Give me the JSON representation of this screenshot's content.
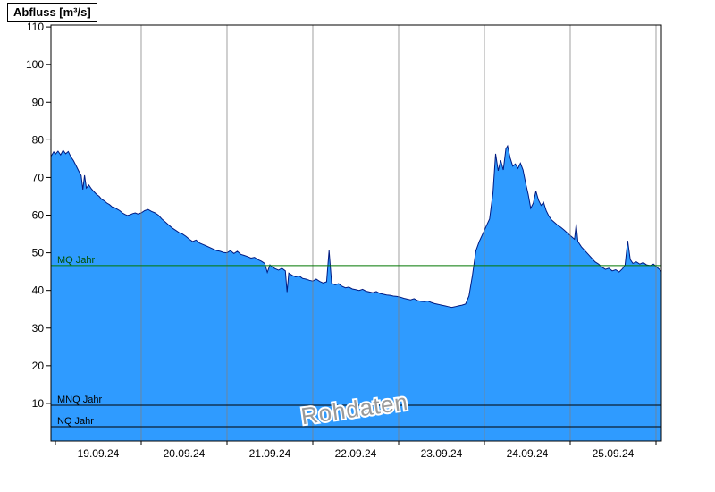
{
  "chart_data": {
    "type": "area",
    "title": "Abfluss [m³/s]",
    "watermark": "Rohdaten",
    "x_tick_labels": [
      "19.09.24",
      "20.09.24",
      "21.09.24",
      "22.09.24",
      "23.09.24",
      "24.09.24",
      "25.09.24"
    ],
    "x_label_positions_days": [
      0.5,
      1.5,
      2.5,
      3.5,
      4.5,
      5.5,
      6.5
    ],
    "x_ticks_days": [
      0,
      1,
      2,
      3,
      4,
      5,
      6,
      7
    ],
    "x_gridlines_days": [
      1,
      2,
      3,
      4,
      5,
      6,
      7
    ],
    "x_domain_days": [
      -0.052,
      7.0625
    ],
    "ylim": [
      0,
      110.5
    ],
    "y_ticks": [
      10,
      20,
      30,
      40,
      50,
      60,
      70,
      80,
      90,
      100,
      110
    ],
    "ylabel": "Abfluss [m³/s]",
    "reference_lines": [
      {
        "label": "MQ Jahr",
        "value": 46.6,
        "color": "#007800",
        "label_color": "#005000"
      },
      {
        "label": "MNQ Jahr",
        "value": 9.5,
        "color": "#000000",
        "label_color": "#000000"
      },
      {
        "label": "NQ Jahr",
        "value": 3.8,
        "color": "#000000",
        "label_color": "#000000"
      }
    ],
    "series": [
      {
        "name": "Abfluss Rohdaten",
        "unit": "m³/s",
        "points": [
          [
            -0.052,
            75.6
          ],
          [
            -0.02,
            76.8
          ],
          [
            0.0,
            76.2
          ],
          [
            0.03,
            77.0
          ],
          [
            0.06,
            76.0
          ],
          [
            0.09,
            77.2
          ],
          [
            0.12,
            76.3
          ],
          [
            0.15,
            76.9
          ],
          [
            0.18,
            75.5
          ],
          [
            0.21,
            74.5
          ],
          [
            0.24,
            73.2
          ],
          [
            0.27,
            71.8
          ],
          [
            0.3,
            70.5
          ],
          [
            0.32,
            66.8
          ],
          [
            0.34,
            70.6
          ],
          [
            0.36,
            67.2
          ],
          [
            0.39,
            68.0
          ],
          [
            0.42,
            67.0
          ],
          [
            0.45,
            66.2
          ],
          [
            0.48,
            65.5
          ],
          [
            0.51,
            65.0
          ],
          [
            0.54,
            64.2
          ],
          [
            0.57,
            63.8
          ],
          [
            0.6,
            63.2
          ],
          [
            0.63,
            62.8
          ],
          [
            0.66,
            62.2
          ],
          [
            0.69,
            62.0
          ],
          [
            0.72,
            61.6
          ],
          [
            0.75,
            61.2
          ],
          [
            0.78,
            60.6
          ],
          [
            0.81,
            60.2
          ],
          [
            0.84,
            59.9
          ],
          [
            0.87,
            60.1
          ],
          [
            0.9,
            60.4
          ],
          [
            0.93,
            60.6
          ],
          [
            0.96,
            60.3
          ],
          [
            1.0,
            60.6
          ],
          [
            1.04,
            61.2
          ],
          [
            1.08,
            61.5
          ],
          [
            1.12,
            61.0
          ],
          [
            1.16,
            60.6
          ],
          [
            1.2,
            60.0
          ],
          [
            1.24,
            59.0
          ],
          [
            1.28,
            58.2
          ],
          [
            1.32,
            57.4
          ],
          [
            1.36,
            56.6
          ],
          [
            1.4,
            56.0
          ],
          [
            1.44,
            55.4
          ],
          [
            1.48,
            55.0
          ],
          [
            1.52,
            54.4
          ],
          [
            1.56,
            53.6
          ],
          [
            1.6,
            53.0
          ],
          [
            1.64,
            53.4
          ],
          [
            1.68,
            52.6
          ],
          [
            1.72,
            52.2
          ],
          [
            1.76,
            51.8
          ],
          [
            1.8,
            51.4
          ],
          [
            1.84,
            51.0
          ],
          [
            1.88,
            50.6
          ],
          [
            1.92,
            50.4
          ],
          [
            1.96,
            50.1
          ],
          [
            2.0,
            50.0
          ],
          [
            2.04,
            50.6
          ],
          [
            2.08,
            49.8
          ],
          [
            2.12,
            50.4
          ],
          [
            2.16,
            49.6
          ],
          [
            2.2,
            49.3
          ],
          [
            2.24,
            49.0
          ],
          [
            2.28,
            48.6
          ],
          [
            2.32,
            48.8
          ],
          [
            2.36,
            48.2
          ],
          [
            2.4,
            47.8
          ],
          [
            2.44,
            47.2
          ],
          [
            2.47,
            44.8
          ],
          [
            2.5,
            46.8
          ],
          [
            2.53,
            46.2
          ],
          [
            2.56,
            45.8
          ],
          [
            2.6,
            45.4
          ],
          [
            2.64,
            45.9
          ],
          [
            2.68,
            45.2
          ],
          [
            2.7,
            39.6
          ],
          [
            2.72,
            44.6
          ],
          [
            2.76,
            44.0
          ],
          [
            2.8,
            43.6
          ],
          [
            2.84,
            43.9
          ],
          [
            2.88,
            43.2
          ],
          [
            2.92,
            43.0
          ],
          [
            2.96,
            42.7
          ],
          [
            3.0,
            42.5
          ],
          [
            3.04,
            43.0
          ],
          [
            3.08,
            42.4
          ],
          [
            3.12,
            42.0
          ],
          [
            3.16,
            42.3
          ],
          [
            3.19,
            50.6
          ],
          [
            3.22,
            41.9
          ],
          [
            3.26,
            41.5
          ],
          [
            3.3,
            41.8
          ],
          [
            3.34,
            41.1
          ],
          [
            3.38,
            40.7
          ],
          [
            3.42,
            40.9
          ],
          [
            3.46,
            40.4
          ],
          [
            3.5,
            40.2
          ],
          [
            3.54,
            40.0
          ],
          [
            3.58,
            40.3
          ],
          [
            3.62,
            39.8
          ],
          [
            3.66,
            39.6
          ],
          [
            3.7,
            39.4
          ],
          [
            3.74,
            39.7
          ],
          [
            3.78,
            39.2
          ],
          [
            3.82,
            39.0
          ],
          [
            3.86,
            38.8
          ],
          [
            3.9,
            38.7
          ],
          [
            3.94,
            38.5
          ],
          [
            3.98,
            38.4
          ],
          [
            4.02,
            38.2
          ],
          [
            4.06,
            37.9
          ],
          [
            4.1,
            37.7
          ],
          [
            4.14,
            37.5
          ],
          [
            4.18,
            37.8
          ],
          [
            4.22,
            37.3
          ],
          [
            4.26,
            37.1
          ],
          [
            4.3,
            37.0
          ],
          [
            4.34,
            37.2
          ],
          [
            4.38,
            36.8
          ],
          [
            4.42,
            36.5
          ],
          [
            4.46,
            36.3
          ],
          [
            4.5,
            36.1
          ],
          [
            4.54,
            35.9
          ],
          [
            4.58,
            35.7
          ],
          [
            4.62,
            35.5
          ],
          [
            4.66,
            35.7
          ],
          [
            4.7,
            35.9
          ],
          [
            4.74,
            36.1
          ],
          [
            4.78,
            36.4
          ],
          [
            4.82,
            38.5
          ],
          [
            4.86,
            44.0
          ],
          [
            4.9,
            50.5
          ],
          [
            4.94,
            53.0
          ],
          [
            4.98,
            55.0
          ],
          [
            5.02,
            57.0
          ],
          [
            5.06,
            59.0
          ],
          [
            5.1,
            66.0
          ],
          [
            5.13,
            76.3
          ],
          [
            5.16,
            71.8
          ],
          [
            5.19,
            74.6
          ],
          [
            5.22,
            72.0
          ],
          [
            5.25,
            77.6
          ],
          [
            5.27,
            78.4
          ],
          [
            5.3,
            75.2
          ],
          [
            5.33,
            73.0
          ],
          [
            5.36,
            73.6
          ],
          [
            5.39,
            72.4
          ],
          [
            5.42,
            73.8
          ],
          [
            5.45,
            72.0
          ],
          [
            5.48,
            68.5
          ],
          [
            5.51,
            65.5
          ],
          [
            5.54,
            61.8
          ],
          [
            5.57,
            63.2
          ],
          [
            5.6,
            66.4
          ],
          [
            5.63,
            64.0
          ],
          [
            5.66,
            62.6
          ],
          [
            5.69,
            63.4
          ],
          [
            5.72,
            61.2
          ],
          [
            5.75,
            59.8
          ],
          [
            5.78,
            58.8
          ],
          [
            5.81,
            58.2
          ],
          [
            5.85,
            57.4
          ],
          [
            5.89,
            56.8
          ],
          [
            5.93,
            56.0
          ],
          [
            5.97,
            55.2
          ],
          [
            6.01,
            54.4
          ],
          [
            6.05,
            53.6
          ],
          [
            6.07,
            57.6
          ],
          [
            6.09,
            53.0
          ],
          [
            6.13,
            51.6
          ],
          [
            6.17,
            50.6
          ],
          [
            6.21,
            49.6
          ],
          [
            6.25,
            48.6
          ],
          [
            6.29,
            47.6
          ],
          [
            6.33,
            47.0
          ],
          [
            6.37,
            46.2
          ],
          [
            6.41,
            45.6
          ],
          [
            6.45,
            45.9
          ],
          [
            6.49,
            45.2
          ],
          [
            6.53,
            45.5
          ],
          [
            6.57,
            44.9
          ],
          [
            6.61,
            45.8
          ],
          [
            6.64,
            46.8
          ],
          [
            6.67,
            53.2
          ],
          [
            6.7,
            48.2
          ],
          [
            6.73,
            47.2
          ],
          [
            6.77,
            47.6
          ],
          [
            6.81,
            47.0
          ],
          [
            6.85,
            47.4
          ],
          [
            6.89,
            46.8
          ],
          [
            6.93,
            46.6
          ],
          [
            6.97,
            47.0
          ],
          [
            7.01,
            46.2
          ],
          [
            7.04,
            45.6
          ],
          [
            7.062,
            45.0
          ]
        ]
      }
    ],
    "colors": {
      "fill": "#2f9bff",
      "stroke": "#001a80",
      "grid": "#808080",
      "axis": "#000000",
      "tick_label": "#000000",
      "watermark_fill": "#9a9a9a",
      "watermark_halo": "#ffffff",
      "background": "#ffffff"
    },
    "legend_position": "none",
    "grid": "vertical-only"
  }
}
